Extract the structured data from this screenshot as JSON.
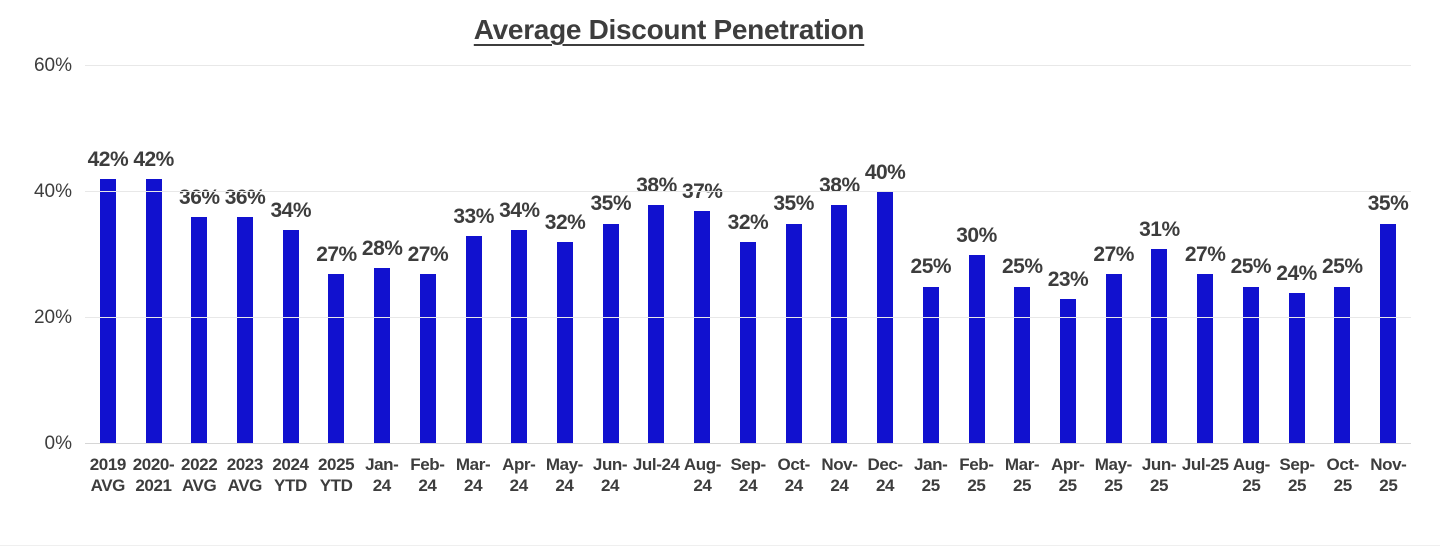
{
  "chart_data": {
    "type": "bar",
    "title": "Average Discount Penetration",
    "categories": [
      "2019 AVG",
      "2020-2021",
      "2022 AVG",
      "2023 AVG",
      "2024 YTD",
      "2025 YTD",
      "Jan-24",
      "Feb-24",
      "Mar-24",
      "Apr-24",
      "May-24",
      "Jun-24",
      "Jul-24",
      "Aug-24",
      "Sep-24",
      "Oct-24",
      "Nov-24",
      "Dec-24",
      "Jan-25",
      "Feb-25",
      "Mar-25",
      "Apr-25",
      "May-25",
      "Jun-25",
      "Jul-25",
      "Aug-25",
      "Sep-25",
      "Oct-25",
      "Nov-25"
    ],
    "category_label_lines": [
      [
        "2019",
        "AVG"
      ],
      [
        "2020-",
        "2021"
      ],
      [
        "2022",
        "AVG"
      ],
      [
        "2023",
        "AVG"
      ],
      [
        "2024",
        "YTD"
      ],
      [
        "2025",
        "YTD"
      ],
      [
        "Jan-",
        "24"
      ],
      [
        "Feb-",
        "24"
      ],
      [
        "Mar-",
        "24"
      ],
      [
        "Apr-",
        "24"
      ],
      [
        "May-",
        "24"
      ],
      [
        "Jun-",
        "24"
      ],
      [
        "Jul-24"
      ],
      [
        "Aug-",
        "24"
      ],
      [
        "Sep-",
        "24"
      ],
      [
        "Oct-",
        "24"
      ],
      [
        "Nov-",
        "24"
      ],
      [
        "Dec-",
        "24"
      ],
      [
        "Jan-",
        "25"
      ],
      [
        "Feb-",
        "25"
      ],
      [
        "Mar-",
        "25"
      ],
      [
        "Apr-",
        "25"
      ],
      [
        "May-",
        "25"
      ],
      [
        "Jun-",
        "25"
      ],
      [
        "Jul-25"
      ],
      [
        "Aug-",
        "25"
      ],
      [
        "Sep-",
        "25"
      ],
      [
        "Oct-",
        "25"
      ],
      [
        "Nov-",
        "25"
      ]
    ],
    "values": [
      42,
      42,
      36,
      36,
      34,
      27,
      28,
      27,
      33,
      34,
      32,
      35,
      38,
      37,
      32,
      35,
      38,
      40,
      25,
      30,
      25,
      23,
      27,
      31,
      27,
      25,
      24,
      25,
      35
    ],
    "data_labels": [
      "42%",
      "42%",
      "36%",
      "36%",
      "34%",
      "27%",
      "28%",
      "27%",
      "33%",
      "34%",
      "32%",
      "35%",
      "38%",
      "37%",
      "32%",
      "35%",
      "38%",
      "40%",
      "25%",
      "30%",
      "25%",
      "23%",
      "27%",
      "31%",
      "27%",
      "25%",
      "24%",
      "25%",
      "35%"
    ],
    "xlabel": "",
    "ylabel": "",
    "ylim": [
      0,
      60
    ],
    "yticks": [
      0,
      20,
      40,
      60
    ],
    "ytick_labels": [
      "0%",
      "20%",
      "40%",
      "60%"
    ],
    "grid": "horizontal-on",
    "legend": "none",
    "colors": {
      "bar": "#1111cf",
      "text": "#3d3d3d",
      "gridline": "#e8e8e8",
      "axis_line": "#d6d6d6"
    }
  }
}
